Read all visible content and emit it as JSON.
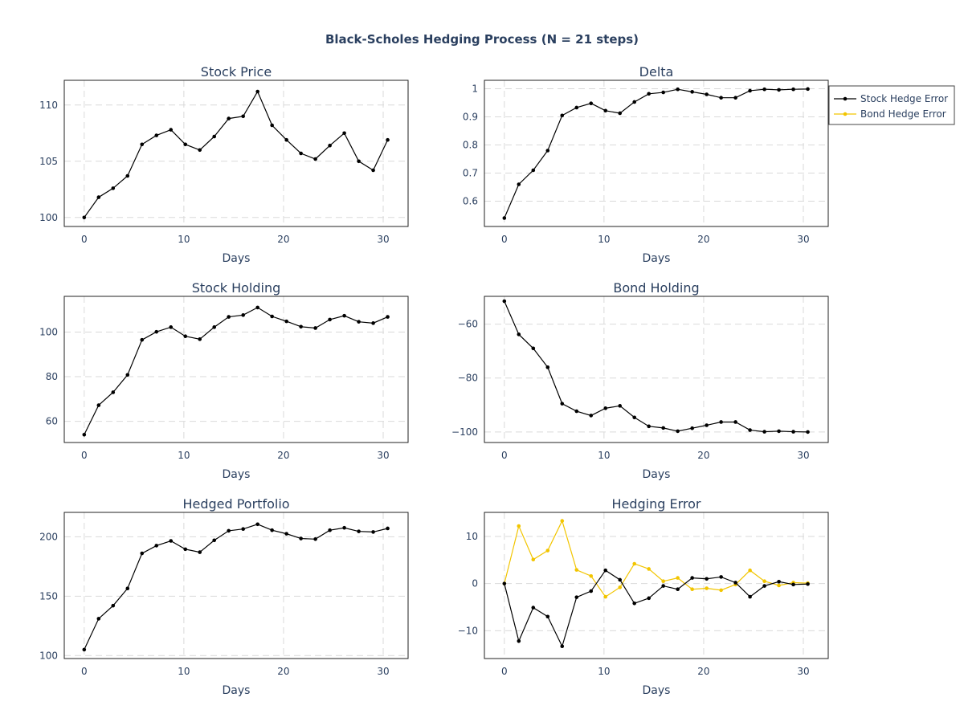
{
  "title": "Black-Scholes Hedging Process (N = 21 steps)",
  "colors": {
    "primary": "#000000",
    "secondary": "#f2c500",
    "text": "#2a3f5f",
    "grid": "#d9d9d9"
  },
  "legend": {
    "position": "top-right",
    "entries": [
      {
        "label": "Stock Hedge Error",
        "color": "#000000"
      },
      {
        "label": "Bond Hedge Error",
        "color": "#f2c500"
      }
    ]
  },
  "chart_data": [
    {
      "type": "line",
      "title": "Stock Price",
      "xlabel": "Days",
      "ylabel": "",
      "xlim": [
        -2,
        32.5
      ],
      "ylim": [
        99.2,
        112.2
      ],
      "xticks": [
        0,
        10,
        20,
        30
      ],
      "yticks": [
        100,
        105,
        110
      ],
      "ytick_labels": [
        "100",
        "105",
        "110"
      ],
      "x": [
        0,
        1.45,
        2.9,
        4.35,
        5.8,
        7.25,
        8.7,
        10.15,
        11.6,
        13.05,
        14.5,
        15.95,
        17.4,
        18.85,
        20.3,
        21.75,
        23.2,
        24.65,
        26.1,
        27.55,
        29.0,
        30.45
      ],
      "series": [
        {
          "color": "#000000",
          "values": [
            100.0,
            101.8,
            102.6,
            103.7,
            106.5,
            107.3,
            107.8,
            106.5,
            106.0,
            107.2,
            108.8,
            109.0,
            111.2,
            108.2,
            106.9,
            105.7,
            105.2,
            106.4,
            107.5,
            105.0,
            104.2,
            106.9
          ]
        }
      ]
    },
    {
      "type": "line",
      "title": "Delta",
      "xlabel": "Days",
      "ylabel": "",
      "xlim": [
        -2,
        32.5
      ],
      "ylim": [
        0.51,
        1.03
      ],
      "xticks": [
        0,
        10,
        20,
        30
      ],
      "yticks": [
        0.6,
        0.7,
        0.8,
        0.9,
        1.0
      ],
      "ytick_labels": [
        "0.6",
        "0.7",
        "0.8",
        "0.9",
        "1"
      ],
      "x": [
        0,
        1.45,
        2.9,
        4.35,
        5.8,
        7.25,
        8.7,
        10.15,
        11.6,
        13.05,
        14.5,
        15.95,
        17.4,
        18.85,
        20.3,
        21.75,
        23.2,
        24.65,
        26.1,
        27.55,
        29.0,
        30.45
      ],
      "series": [
        {
          "color": "#000000",
          "values": [
            0.54,
            0.66,
            0.71,
            0.78,
            0.905,
            0.933,
            0.948,
            0.922,
            0.913,
            0.953,
            0.982,
            0.987,
            0.998,
            0.989,
            0.98,
            0.968,
            0.968,
            0.993,
            0.998,
            0.996,
            0.998,
            0.999
          ]
        }
      ]
    },
    {
      "type": "line",
      "title": "Stock Holding",
      "xlabel": "Days",
      "ylabel": "",
      "xlim": [
        -2,
        32.5
      ],
      "ylim": [
        50.5,
        116
      ],
      "xticks": [
        0,
        10,
        20,
        30
      ],
      "yticks": [
        60,
        80,
        100
      ],
      "ytick_labels": [
        "60",
        "80",
        "100"
      ],
      "x": [
        0,
        1.45,
        2.9,
        4.35,
        5.8,
        7.25,
        8.7,
        10.15,
        11.6,
        13.05,
        14.5,
        15.95,
        17.4,
        18.85,
        20.3,
        21.75,
        23.2,
        24.65,
        26.1,
        27.55,
        29.0,
        30.45
      ],
      "series": [
        {
          "color": "#000000",
          "values": [
            54.0,
            67.2,
            73.0,
            80.8,
            96.5,
            100.1,
            102.2,
            98.1,
            96.8,
            102.2,
            106.8,
            107.6,
            111.0,
            107.0,
            104.8,
            102.4,
            101.8,
            105.6,
            107.3,
            104.6,
            104.0,
            106.8
          ]
        }
      ]
    },
    {
      "type": "line",
      "title": "Bond Holding",
      "xlabel": "Days",
      "ylabel": "",
      "xlim": [
        -2,
        32.5
      ],
      "ylim": [
        -103.9,
        -49.7
      ],
      "xticks": [
        0,
        10,
        20,
        30
      ],
      "yticks": [
        -100,
        -80,
        -60
      ],
      "ytick_labels": [
        "−100",
        "−80",
        "−60"
      ],
      "x": [
        0,
        1.45,
        2.9,
        4.35,
        5.8,
        7.25,
        8.7,
        10.15,
        11.6,
        13.05,
        14.5,
        15.95,
        17.4,
        18.85,
        20.3,
        21.75,
        23.2,
        24.65,
        26.1,
        27.55,
        29.0,
        30.45
      ],
      "series": [
        {
          "color": "#000000",
          "values": [
            -51.5,
            -63.8,
            -69.0,
            -76.0,
            -89.5,
            -92.3,
            -93.9,
            -91.2,
            -90.3,
            -94.6,
            -97.9,
            -98.5,
            -99.7,
            -98.6,
            -97.5,
            -96.3,
            -96.3,
            -99.3,
            -99.9,
            -99.7,
            -99.9,
            -100.0
          ]
        }
      ]
    },
    {
      "type": "line",
      "title": "Hedged Portfolio",
      "xlabel": "Days",
      "ylabel": "",
      "xlim": [
        -2,
        32.5
      ],
      "ylim": [
        97.5,
        220.5
      ],
      "xticks": [
        0,
        10,
        20,
        30
      ],
      "yticks": [
        100,
        150,
        200
      ],
      "ytick_labels": [
        "100",
        "150",
        "200"
      ],
      "x": [
        0,
        1.45,
        2.9,
        4.35,
        5.8,
        7.25,
        8.7,
        10.15,
        11.6,
        13.05,
        14.5,
        15.95,
        17.4,
        18.85,
        20.3,
        21.75,
        23.2,
        24.65,
        26.1,
        27.55,
        29.0,
        30.45
      ],
      "series": [
        {
          "color": "#000000",
          "values": [
            105.0,
            131.0,
            142.0,
            156.5,
            186.0,
            192.5,
            196.5,
            189.5,
            187.0,
            197.0,
            205.0,
            206.5,
            210.5,
            205.5,
            202.5,
            198.5,
            198.0,
            205.5,
            207.5,
            204.5,
            204.0,
            207.0
          ]
        }
      ]
    },
    {
      "type": "line",
      "title": "Hedging Error",
      "xlabel": "Days",
      "ylabel": "",
      "xlim": [
        -2,
        32.5
      ],
      "ylim": [
        -15.9,
        15.1
      ],
      "xticks": [
        0,
        10,
        20,
        30
      ],
      "yticks": [
        -10,
        0,
        10
      ],
      "ytick_labels": [
        "−10",
        "0",
        "10"
      ],
      "x": [
        0,
        1.45,
        2.9,
        4.35,
        5.8,
        7.25,
        8.7,
        10.15,
        11.6,
        13.05,
        14.5,
        15.95,
        17.4,
        18.85,
        20.3,
        21.75,
        23.2,
        24.65,
        26.1,
        27.55,
        29.0,
        30.45
      ],
      "series": [
        {
          "name": "Stock Hedge Error",
          "color": "#000000",
          "values": [
            0,
            -12.2,
            -5.1,
            -7.0,
            -13.3,
            -2.9,
            -1.6,
            2.8,
            0.8,
            -4.2,
            -3.1,
            -0.5,
            -1.2,
            1.2,
            1.0,
            1.4,
            0.2,
            -2.8,
            -0.5,
            0.4,
            -0.2,
            -0.1
          ]
        },
        {
          "name": "Bond Hedge Error",
          "color": "#f2c500",
          "values": [
            0,
            12.2,
            5.1,
            7.0,
            13.3,
            2.9,
            1.6,
            -2.8,
            -0.8,
            4.2,
            3.1,
            0.5,
            1.2,
            -1.2,
            -1.0,
            -1.4,
            -0.2,
            2.8,
            0.5,
            -0.4,
            0.2,
            0.1
          ]
        }
      ]
    }
  ]
}
